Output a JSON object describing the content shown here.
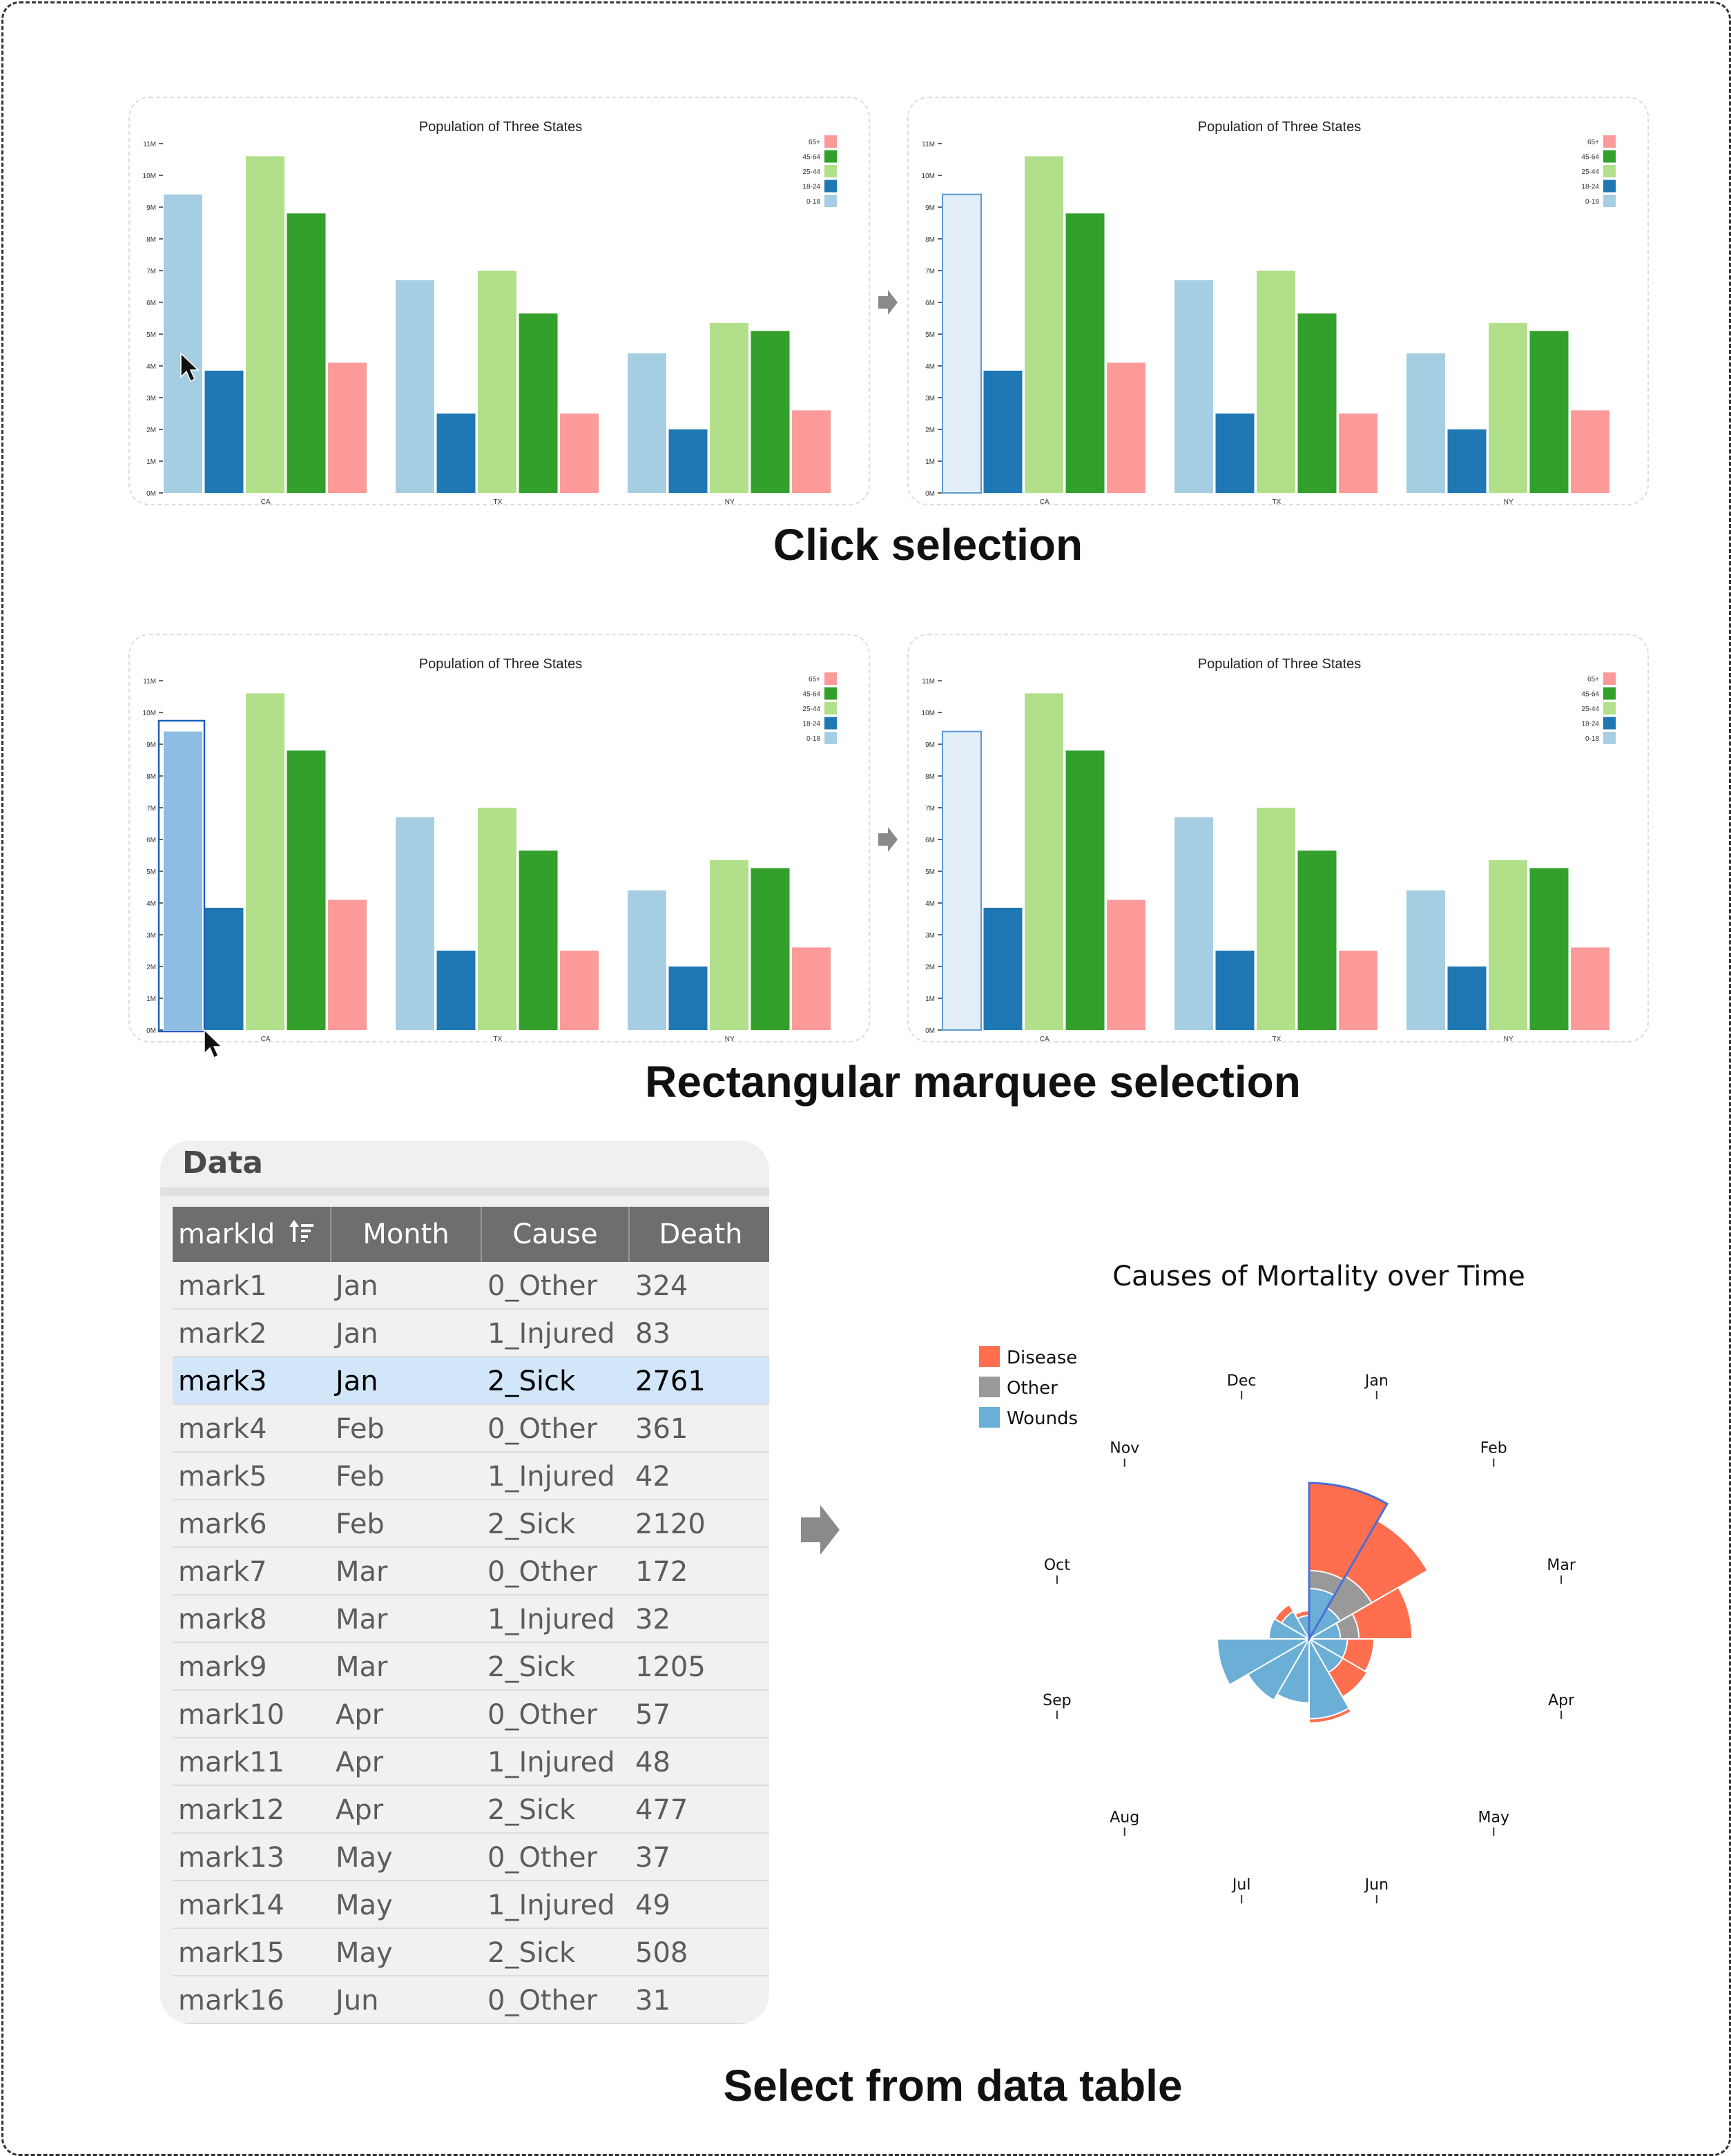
{
  "captions": {
    "click": "Click selection",
    "marquee": "Rectangular marquee selection",
    "table": "Select from data table"
  },
  "colors": {
    "c0_18": "#a6cee3",
    "c18_24": "#1f78b4",
    "c25_44": "#b2df8a",
    "c45_64": "#33a02c",
    "c65": "#fb9a99",
    "selection_fill": "#e3eef8",
    "selection_stroke": "#5b9bd5",
    "marquee_fill": "#8ebde3",
    "disease": "#ff6e4e",
    "other": "#999999",
    "wounds": "#6baed6",
    "arrow": "#8a8a8a"
  },
  "chart_data": [
    {
      "id": "click-before",
      "type": "bar",
      "title": "Population of Three States",
      "categories": [
        "CA",
        "TX",
        "NY"
      ],
      "ylim": [
        0,
        11
      ],
      "yticks": [
        "0M",
        "1M",
        "2M",
        "3M",
        "4M",
        "5M",
        "6M",
        "7M",
        "8M",
        "9M",
        "10M",
        "11M"
      ],
      "legend": [
        "65+",
        "45-64",
        "25-44",
        "18-24",
        "0-18"
      ],
      "legend_position": "top-right",
      "series": [
        {
          "name": "0-18",
          "values": [
            9.4,
            6.7,
            4.4
          ]
        },
        {
          "name": "18-24",
          "values": [
            3.85,
            2.5,
            2.0
          ]
        },
        {
          "name": "25-44",
          "values": [
            10.6,
            7.0,
            5.35
          ]
        },
        {
          "name": "45-64",
          "values": [
            8.8,
            5.65,
            5.1
          ]
        },
        {
          "name": "65+",
          "values": [
            4.1,
            2.5,
            2.6
          ]
        }
      ],
      "selection": "none"
    },
    {
      "id": "click-after",
      "type": "bar",
      "title": "Population of Three States",
      "categories": [
        "CA",
        "TX",
        "NY"
      ],
      "ylim": [
        0,
        11
      ],
      "yticks": [
        "0M",
        "1M",
        "2M",
        "3M",
        "4M",
        "5M",
        "6M",
        "7M",
        "8M",
        "9M",
        "10M",
        "11M"
      ],
      "legend": [
        "65+",
        "45-64",
        "25-44",
        "18-24",
        "0-18"
      ],
      "legend_position": "top-right",
      "series": [
        {
          "name": "0-18",
          "values": [
            9.4,
            6.7,
            4.4
          ]
        },
        {
          "name": "18-24",
          "values": [
            3.85,
            2.5,
            2.0
          ]
        },
        {
          "name": "25-44",
          "values": [
            10.6,
            7.0,
            5.35
          ]
        },
        {
          "name": "45-64",
          "values": [
            8.8,
            5.65,
            5.1
          ]
        },
        {
          "name": "65+",
          "values": [
            4.1,
            2.5,
            2.6
          ]
        }
      ],
      "selection": "selected"
    },
    {
      "id": "marquee-before",
      "type": "bar",
      "title": "Population of Three States",
      "categories": [
        "CA",
        "TX",
        "NY"
      ],
      "ylim": [
        0,
        11
      ],
      "yticks": [
        "0M",
        "1M",
        "2M",
        "3M",
        "4M",
        "5M",
        "6M",
        "7M",
        "8M",
        "9M",
        "10M",
        "11M"
      ],
      "legend": [
        "65+",
        "45-64",
        "25-44",
        "18-24",
        "0-18"
      ],
      "legend_position": "top-right",
      "series": [
        {
          "name": "0-18",
          "values": [
            9.4,
            6.7,
            4.4
          ]
        },
        {
          "name": "18-24",
          "values": [
            3.85,
            2.5,
            2.0
          ]
        },
        {
          "name": "25-44",
          "values": [
            10.6,
            7.0,
            5.35
          ]
        },
        {
          "name": "45-64",
          "values": [
            8.8,
            5.65,
            5.1
          ]
        },
        {
          "name": "65+",
          "values": [
            4.1,
            2.5,
            2.6
          ]
        }
      ],
      "selection": "marquee"
    },
    {
      "id": "marquee-after",
      "type": "bar",
      "title": "Population of Three States",
      "categories": [
        "CA",
        "TX",
        "NY"
      ],
      "ylim": [
        0,
        11
      ],
      "yticks": [
        "0M",
        "1M",
        "2M",
        "3M",
        "4M",
        "5M",
        "6M",
        "7M",
        "8M",
        "9M",
        "10M",
        "11M"
      ],
      "legend": [
        "65+",
        "45-64",
        "25-44",
        "18-24",
        "0-18"
      ],
      "legend_position": "top-right",
      "series": [
        {
          "name": "0-18",
          "values": [
            9.4,
            6.7,
            4.4
          ]
        },
        {
          "name": "18-24",
          "values": [
            3.85,
            2.5,
            2.0
          ]
        },
        {
          "name": "25-44",
          "values": [
            10.6,
            7.0,
            5.35
          ]
        },
        {
          "name": "45-64",
          "values": [
            8.8,
            5.65,
            5.1
          ]
        },
        {
          "name": "65+",
          "values": [
            4.1,
            2.5,
            2.6
          ]
        }
      ],
      "selection": "selected"
    },
    {
      "id": "mortality-polar",
      "type": "polar-area",
      "title": "Causes of Mortality over Time",
      "months": [
        "Jan",
        "Feb",
        "Mar",
        "Apr",
        "May",
        "Jun",
        "Jul",
        "Aug",
        "Sep",
        "Oct",
        "Nov",
        "Dec"
      ],
      "legend": [
        "Disease",
        "Other",
        "Wounds"
      ],
      "legend_position": "top-left",
      "series": [
        {
          "name": "Disease",
          "values": [
            2761,
            2120,
            1205,
            477,
            508,
            802,
            382,
            483,
            189,
            128,
            178,
            91
          ]
        },
        {
          "name": "Other",
          "values": [
            324,
            361,
            172,
            57,
            37,
            31,
            33,
            25,
            20,
            18,
            32,
            28
          ]
        },
        {
          "name": "Wounds",
          "values": [
            83,
            42,
            32,
            48,
            49,
            209,
            134,
            164,
            276,
            53,
            33,
            18
          ]
        }
      ],
      "highlighted": "mark3"
    }
  ],
  "table": {
    "window_title": "Data",
    "columns": [
      "markId",
      "Month",
      "Cause",
      "Death"
    ],
    "rows": [
      [
        "mark1",
        "Jan",
        "0_Other",
        "324"
      ],
      [
        "mark2",
        "Jan",
        "1_Injured",
        "83"
      ],
      [
        "mark3",
        "Jan",
        "2_Sick",
        "2761"
      ],
      [
        "mark4",
        "Feb",
        "0_Other",
        "361"
      ],
      [
        "mark5",
        "Feb",
        "1_Injured",
        "42"
      ],
      [
        "mark6",
        "Feb",
        "2_Sick",
        "2120"
      ],
      [
        "mark7",
        "Mar",
        "0_Other",
        "172"
      ],
      [
        "mark8",
        "Mar",
        "1_Injured",
        "32"
      ],
      [
        "mark9",
        "Mar",
        "2_Sick",
        "1205"
      ],
      [
        "mark10",
        "Apr",
        "0_Other",
        "57"
      ],
      [
        "mark11",
        "Apr",
        "1_Injured",
        "48"
      ],
      [
        "mark12",
        "Apr",
        "2_Sick",
        "477"
      ],
      [
        "mark13",
        "May",
        "0_Other",
        "37"
      ],
      [
        "mark14",
        "May",
        "1_Injured",
        "49"
      ],
      [
        "mark15",
        "May",
        "2_Sick",
        "508"
      ],
      [
        "mark16",
        "Jun",
        "0_Other",
        "31"
      ]
    ],
    "selected_row": 2,
    "sort_column": "markId"
  },
  "icons": [
    "cursor-arrow-icon",
    "right-arrow-icon",
    "sort-ascending-icon"
  ]
}
